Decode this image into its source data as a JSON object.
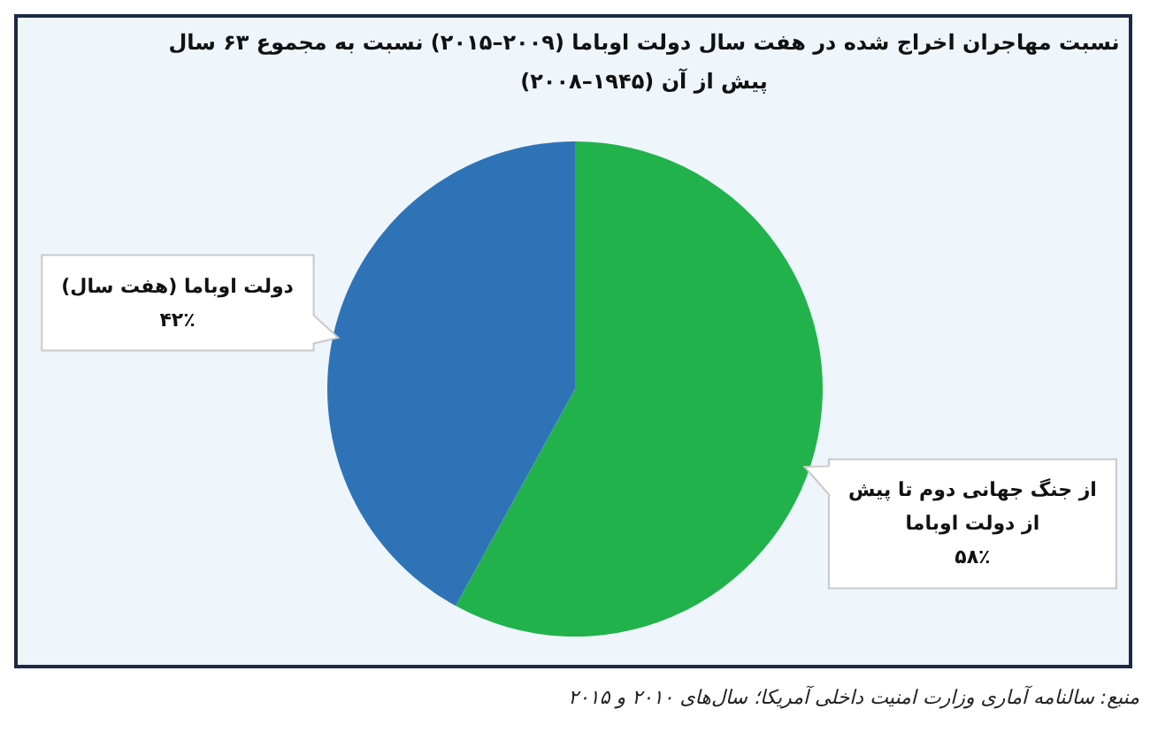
{
  "chart_data": {
    "type": "pie",
    "title": "نسبت مهاجران اخراج شده در هفت سال دولت اوباما (۲۰۰۹–۲۰۱۵) نسبت به مجموع ۶۳ سال پیش از آن (۱۹۴۵–۲۰۰۸)",
    "categories": [
      "از جنگ جهانی دوم تا پیش از دولت اوباما",
      "دولت اوباما (هفت سال)"
    ],
    "values": [
      58,
      42
    ],
    "colors": [
      "#22b24c",
      "#2f73b7"
    ],
    "value_labels": [
      "۵۸٪",
      "۴۲٪"
    ],
    "annotations": [
      "منبع: سالنامه آماری وزارت امنیت داخلی آمریکا؛ سال‌های ۲۰۱۰ و ۲۰۱۵"
    ]
  }
}
